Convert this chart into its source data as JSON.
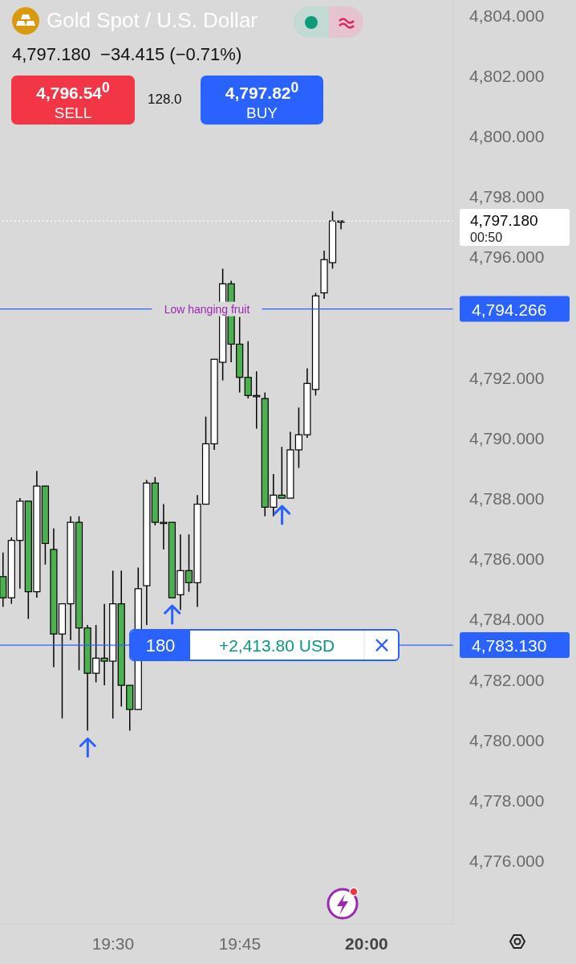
{
  "chart_data": {
    "type": "candlestick",
    "title": "Gold Spot / U.S. Dollar",
    "subtitle": "4,797.180  −34.415 (−0.71%)",
    "x": [
      19.2833,
      19.3,
      19.3167,
      19.3333,
      19.35,
      19.3667,
      19.3833,
      19.4,
      19.4167,
      19.4333,
      19.45,
      19.4667,
      19.4833,
      19.5,
      19.5167,
      19.5333,
      19.55,
      19.5667,
      19.5833,
      19.6,
      19.6167,
      19.6333,
      19.65,
      19.6667,
      19.6833,
      19.7,
      19.7167,
      19.7333,
      19.75,
      19.7667,
      19.7833,
      19.8,
      19.8167,
      19.8333,
      19.85,
      19.8667,
      19.8833,
      19.9,
      19.9167,
      19.9333,
      19.95
    ],
    "ohlc": [
      [
        4785.4,
        4786.2,
        4784.4,
        4784.7
      ],
      [
        4784.7,
        4786.7,
        4784.5,
        4786.6
      ],
      [
        4786.6,
        4788.0,
        4785.0,
        4787.9
      ],
      [
        4787.9,
        4787.9,
        4784.0,
        4784.9
      ],
      [
        4784.9,
        4788.9,
        4784.7,
        4788.4
      ],
      [
        4788.4,
        4788.4,
        4785.8,
        4786.5
      ],
      [
        4786.3,
        4787.0,
        4782.4,
        4783.5
      ],
      [
        4783.5,
        4784.5,
        4780.7,
        4784.5
      ],
      [
        4784.5,
        4787.4,
        4783.3,
        4787.2
      ],
      [
        4787.2,
        4787.4,
        4782.3,
        4783.7
      ],
      [
        4783.7,
        4783.8,
        4780.3,
        4782.2
      ],
      [
        4782.2,
        4783.8,
        4781.9,
        4782.7
      ],
      [
        4782.7,
        4784.5,
        4781.8,
        4782.6
      ],
      [
        4782.6,
        4785.6,
        4780.7,
        4784.5
      ],
      [
        4784.5,
        4785.6,
        4781.1,
        4781.8
      ],
      [
        4781.8,
        4781.8,
        4780.3,
        4781.0
      ],
      [
        4781.0,
        4785.7,
        4781.0,
        4785.0
      ],
      [
        4785.1,
        4788.6,
        4783.8,
        4788.5
      ],
      [
        4788.5,
        4788.7,
        4787.1,
        4787.2
      ],
      [
        4787.2,
        4787.8,
        4786.3,
        4787.2
      ],
      [
        4787.2,
        4787.2,
        4784.7,
        4784.7
      ],
      [
        4784.8,
        4786.8,
        4784.3,
        4785.6
      ],
      [
        4785.6,
        4786.8,
        4784.9,
        4785.2
      ],
      [
        4785.2,
        4788.1,
        4784.4,
        4787.8
      ],
      [
        4787.8,
        4790.7,
        4787.8,
        4789.8
      ],
      [
        4789.8,
        4792.6,
        4789.6,
        4792.6
      ],
      [
        4792.5,
        4795.6,
        4791.9,
        4795.1
      ],
      [
        4795.1,
        4795.2,
        4792.5,
        4793.1
      ],
      [
        4793.1,
        4794.0,
        4791.5,
        4792.0
      ],
      [
        4792.0,
        4793.2,
        4791.3,
        4791.4
      ],
      [
        4791.4,
        4792.2,
        4790.3,
        4791.4
      ],
      [
        4791.3,
        4791.5,
        4787.4,
        4787.7
      ],
      [
        4787.7,
        4788.8,
        4787.4,
        4788.1
      ],
      [
        4788.1,
        4789.7,
        4788.0,
        4788.0
      ],
      [
        4788.0,
        4790.2,
        4788.0,
        4789.6
      ],
      [
        4789.6,
        4791.0,
        4789.0,
        4790.1
      ],
      [
        4790.1,
        4792.3,
        4790.0,
        4791.8
      ],
      [
        4791.6,
        4794.8,
        4791.4,
        4794.7
      ],
      [
        4794.8,
        4796.2,
        4794.6,
        4795.9
      ],
      [
        4795.8,
        4797.5,
        4795.6,
        4797.18
      ],
      [
        4797.18,
        4797.2,
        4796.9,
        4797.18
      ]
    ],
    "colors": [
      "#4caf50",
      "#ffffff",
      "#ffffff",
      "#4caf50",
      "#ffffff",
      "#4caf50",
      "#4caf50",
      "#ffffff",
      "#ffffff",
      "#4caf50",
      "#4caf50",
      "#ffffff",
      "#4caf50",
      "#ffffff",
      "#4caf50",
      "#4caf50",
      "#ffffff",
      "#ffffff",
      "#4caf50",
      "#ffffff",
      "#4caf50",
      "#ffffff",
      "#4caf50",
      "#ffffff",
      "#ffffff",
      "#ffffff",
      "#ffffff",
      "#4caf50",
      "#4caf50",
      "#4caf50",
      "#ffffff",
      "#4caf50",
      "#ffffff",
      "#4caf50",
      "#ffffff",
      "#ffffff",
      "#ffffff",
      "#ffffff",
      "#ffffff",
      "#ffffff",
      "#ffffff"
    ],
    "xlim": [
      19.277,
      20.171
    ],
    "xticks": [
      {
        "value": 19.5,
        "label": "19:30"
      },
      {
        "value": 19.75,
        "label": "19:45"
      },
      {
        "value": 20,
        "label": "20:00"
      }
    ],
    "ylim": [
      4773.9,
      4804.5
    ],
    "yticks": [
      {
        "value": 4776,
        "label": "4,776.000"
      },
      {
        "value": 4778,
        "label": "4,778.000"
      },
      {
        "value": 4780,
        "label": "4,780.000"
      },
      {
        "value": 4782,
        "label": "4,782.000"
      },
      {
        "value": 4784,
        "label": "4,784.000"
      },
      {
        "value": 4786,
        "label": "4,786.000"
      },
      {
        "value": 4788,
        "label": "4,788.000"
      },
      {
        "value": 4790,
        "label": "4,790.000"
      },
      {
        "value": 4792,
        "label": "4,792.000"
      },
      {
        "value": 4796,
        "label": "4,796.000"
      },
      {
        "value": 4798,
        "label": "4,798.000"
      },
      {
        "value": 4800,
        "label": "4,800.000"
      },
      {
        "value": 4802,
        "label": "4,802.000"
      },
      {
        "value": 4804,
        "label": "4,804.000"
      }
    ],
    "ref_lines": [
      {
        "axis": "y",
        "value": 4794.266,
        "label": "Low hanging fruit",
        "color": "#2962ff"
      },
      {
        "axis": "y",
        "value": 4783.13,
        "color": "#2962ff"
      },
      {
        "axis": "y",
        "value": 4797.18,
        "color": "#ffffff",
        "line_style": "dotted"
      }
    ],
    "annotations": [
      "4,796.54$^{0}$",
      "SELL",
      "128.0",
      "4,797.82$^{0}$",
      "BUY",
      "180",
      "+2,413.80 USD",
      "00:50",
      "4,794.266",
      "4,783.130",
      "4,797.180"
    ]
  }
}
